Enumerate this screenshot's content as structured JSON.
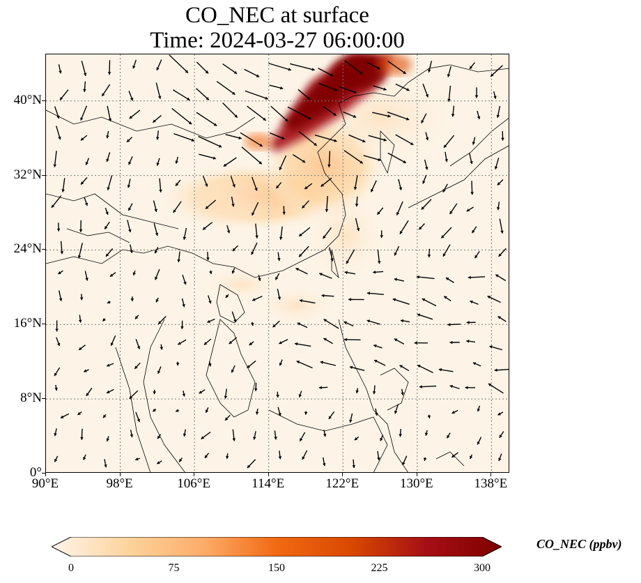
{
  "title": {
    "line1": "CO_NEC at surface",
    "line2": "Time: 2024-03-27 06:00:00"
  },
  "map": {
    "lon_range": [
      90,
      140
    ],
    "lat_range": [
      0,
      45
    ],
    "lat_ticks": [
      {
        "value": 0,
        "label": "0°"
      },
      {
        "value": 8,
        "label": "8°N"
      },
      {
        "value": 16,
        "label": "16°N"
      },
      {
        "value": 24,
        "label": "24°N"
      },
      {
        "value": 32,
        "label": "32°N"
      },
      {
        "value": 40,
        "label": "40°N"
      }
    ],
    "lon_ticks": [
      {
        "value": 90,
        "label": "90°E"
      },
      {
        "value": 98,
        "label": "98°E"
      },
      {
        "value": 106,
        "label": "106°E"
      },
      {
        "value": 114,
        "label": "114°E"
      },
      {
        "value": 122,
        "label": "122°E"
      },
      {
        "value": 130,
        "label": "130°E"
      },
      {
        "value": 138,
        "label": "138°E"
      }
    ],
    "gridlines": "dotted",
    "background_color": "#fdf4e7"
  },
  "colorbar": {
    "label": "CO_NEC (ppbv)",
    "ticks": [
      "0",
      "75",
      "150",
      "225",
      "300"
    ],
    "colors": [
      "#fff5eb",
      "#fdd49e",
      "#fdae6b",
      "#f16913",
      "#d94801",
      "#a50f15",
      "#7f0000"
    ],
    "extend": "both"
  }
}
